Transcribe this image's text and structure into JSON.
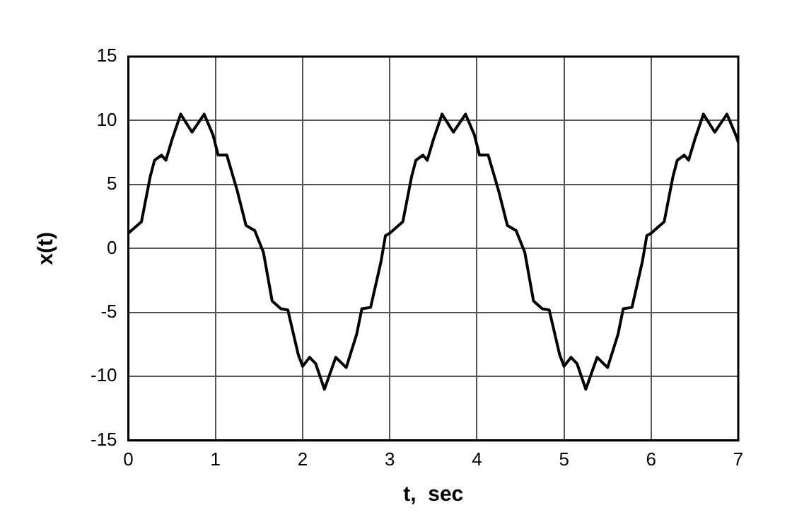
{
  "chart_data": {
    "type": "line",
    "xlabel": "t,  sec",
    "ylabel": "x(t)",
    "x": [
      0,
      0.05,
      0.15,
      0.25,
      0.3,
      0.38,
      0.43,
      0.5,
      0.6,
      0.73,
      0.87,
      0.97,
      1.03,
      1.13,
      1.25,
      1.35,
      1.45,
      1.55,
      1.65,
      1.75,
      1.83,
      1.95,
      2.0,
      2.08,
      2.15,
      2.25,
      2.38,
      2.5,
      2.62,
      2.68,
      2.78,
      2.9,
      2.95,
      3,
      3.05,
      3.15,
      3.25,
      3.3,
      3.38,
      3.43,
      3.5,
      3.6,
      3.73,
      3.87,
      3.97,
      4.03,
      4.13,
      4.25,
      4.35,
      4.45,
      4.55,
      4.65,
      4.75,
      4.83,
      4.95,
      5.0,
      5.08,
      5.15,
      5.25,
      5.38,
      5.5,
      5.62,
      5.68,
      5.78,
      5.9,
      5.95,
      6,
      6.05,
      6.15,
      6.25,
      6.3,
      6.38,
      6.43,
      6.5,
      6.6,
      6.73,
      6.87,
      6.97,
      7
    ],
    "series": [
      {
        "color": "#000000",
        "values": [
          1.2,
          1.5,
          2.1,
          5.6,
          6.9,
          7.3,
          6.9,
          8.5,
          10.5,
          9.1,
          10.5,
          8.9,
          7.3,
          7.3,
          4.5,
          1.8,
          1.4,
          -0.3,
          -4.1,
          -4.7,
          -4.8,
          -8.3,
          -9.2,
          -8.5,
          -9.0,
          -11.0,
          -8.5,
          -9.3,
          -6.7,
          -4.7,
          -4.6,
          -1.0,
          1.0,
          1.2,
          1.5,
          2.1,
          5.6,
          6.9,
          7.3,
          6.9,
          8.5,
          10.5,
          9.1,
          10.5,
          8.9,
          7.3,
          7.3,
          4.5,
          1.8,
          1.4,
          -0.3,
          -4.1,
          -4.7,
          -4.8,
          -8.3,
          -9.2,
          -8.5,
          -9.0,
          -11.0,
          -8.5,
          -9.3,
          -6.7,
          -4.7,
          -4.6,
          -1.0,
          1.0,
          1.2,
          1.5,
          2.1,
          5.6,
          6.9,
          7.3,
          6.9,
          8.5,
          10.5,
          9.1,
          10.5,
          8.9,
          8.3
        ]
      }
    ],
    "xlim": [
      0,
      7
    ],
    "xticks": [
      0,
      1,
      2,
      3,
      4,
      5,
      6,
      7
    ],
    "ylim": [
      -15,
      15
    ],
    "yticks": [
      -15,
      -10,
      -5,
      0,
      5,
      10,
      15
    ],
    "grid": true,
    "legend": false,
    "marker": "none",
    "line_style": "solid"
  }
}
